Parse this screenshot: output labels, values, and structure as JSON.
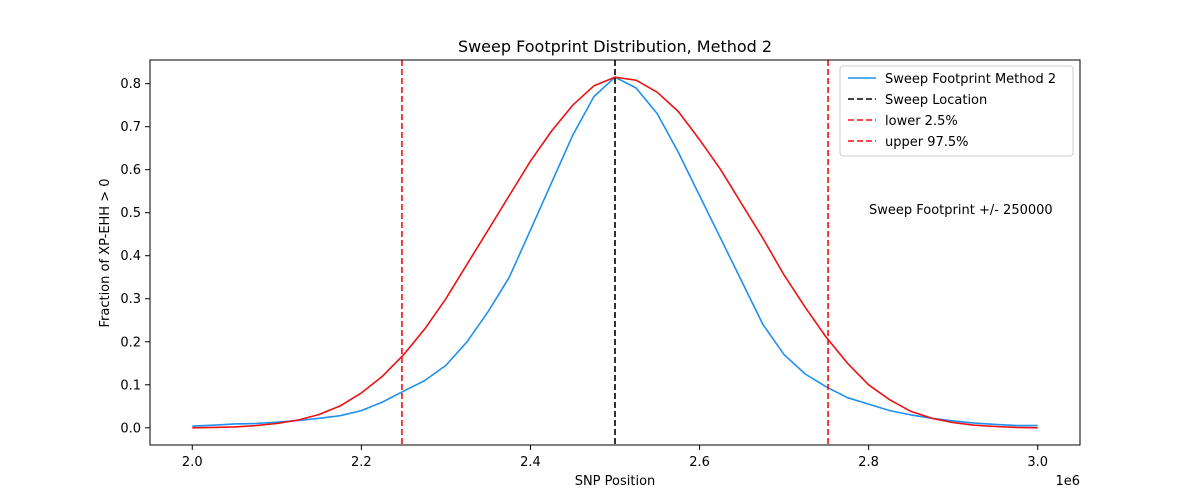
{
  "chart_data": {
    "type": "line",
    "title": "Sweep Footprint Distribution, Method 2",
    "xlabel": "SNP Position",
    "ylabel": "Fraction of XP-EHH > 0",
    "x_offset_label": "1e6",
    "xlim": [
      1950000,
      3050000
    ],
    "ylim": [
      -0.04,
      0.855
    ],
    "x_ticks": [
      2000000,
      2200000,
      2400000,
      2600000,
      2800000,
      3000000
    ],
    "x_tick_labels": [
      "2.0",
      "2.2",
      "2.4",
      "2.6",
      "2.8",
      "3.0"
    ],
    "y_ticks": [
      0.0,
      0.1,
      0.2,
      0.3,
      0.4,
      0.5,
      0.6,
      0.7,
      0.8
    ],
    "y_tick_labels": [
      "0.0",
      "0.1",
      "0.2",
      "0.3",
      "0.4",
      "0.5",
      "0.6",
      "0.7",
      "0.8"
    ],
    "grid": false,
    "legend_position": "top-right",
    "annotation": "Sweep Footprint +/- 250000",
    "series": [
      {
        "name": "Sweep Footprint Method 2",
        "color": "#1f8ff0",
        "style": "solid",
        "x": [
          2000000,
          2025000,
          2050000,
          2075000,
          2100000,
          2125000,
          2150000,
          2175000,
          2200000,
          2225000,
          2250000,
          2275000,
          2300000,
          2325000,
          2350000,
          2375000,
          2400000,
          2425000,
          2450000,
          2475000,
          2500000,
          2525000,
          2550000,
          2575000,
          2600000,
          2625000,
          2650000,
          2675000,
          2700000,
          2725000,
          2750000,
          2775000,
          2800000,
          2825000,
          2850000,
          2875000,
          2900000,
          2925000,
          2950000,
          2975000,
          3000000
        ],
        "y": [
          0.004,
          0.006,
          0.009,
          0.01,
          0.013,
          0.017,
          0.022,
          0.028,
          0.04,
          0.06,
          0.085,
          0.11,
          0.145,
          0.2,
          0.27,
          0.35,
          0.46,
          0.57,
          0.68,
          0.77,
          0.815,
          0.79,
          0.73,
          0.64,
          0.54,
          0.44,
          0.34,
          0.24,
          0.17,
          0.125,
          0.095,
          0.07,
          0.055,
          0.04,
          0.03,
          0.022,
          0.016,
          0.011,
          0.008,
          0.005,
          0.005
        ]
      },
      {
        "name": "",
        "color": "#ee1111",
        "style": "solid",
        "x": [
          2000000,
          2025000,
          2050000,
          2075000,
          2100000,
          2125000,
          2150000,
          2175000,
          2200000,
          2225000,
          2250000,
          2275000,
          2300000,
          2325000,
          2350000,
          2375000,
          2400000,
          2425000,
          2450000,
          2475000,
          2500000,
          2525000,
          2550000,
          2575000,
          2600000,
          2625000,
          2650000,
          2675000,
          2700000,
          2725000,
          2750000,
          2775000,
          2800000,
          2825000,
          2850000,
          2875000,
          2900000,
          2925000,
          2950000,
          2975000,
          3000000
        ],
        "y": [
          0.0,
          0.001,
          0.002,
          0.005,
          0.01,
          0.018,
          0.031,
          0.051,
          0.081,
          0.12,
          0.17,
          0.23,
          0.3,
          0.38,
          0.46,
          0.54,
          0.62,
          0.69,
          0.75,
          0.795,
          0.815,
          0.808,
          0.78,
          0.735,
          0.67,
          0.6,
          0.52,
          0.44,
          0.355,
          0.28,
          0.21,
          0.15,
          0.1,
          0.065,
          0.038,
          0.022,
          0.012,
          0.006,
          0.003,
          0.001,
          0.0
        ]
      }
    ],
    "vlines": [
      {
        "name": "Sweep Location",
        "x": 2500000,
        "color": "#000000",
        "style": "dashed"
      },
      {
        "name": "lower 2.5%",
        "x": 2248000,
        "color": "#ee1111",
        "style": "dashed"
      },
      {
        "name": "upper 97.5%",
        "x": 2752000,
        "color": "#ee1111",
        "style": "dashed"
      }
    ],
    "legend_entries": [
      {
        "label": "Sweep Footprint Method 2",
        "color": "#1f8ff0",
        "style": "solid"
      },
      {
        "label": "Sweep Location",
        "color": "#000000",
        "style": "dashed"
      },
      {
        "label": "lower 2.5%",
        "color": "#ee1111",
        "style": "dashed"
      },
      {
        "label": "upper 97.5%",
        "color": "#ee1111",
        "style": "dashed"
      }
    ]
  }
}
